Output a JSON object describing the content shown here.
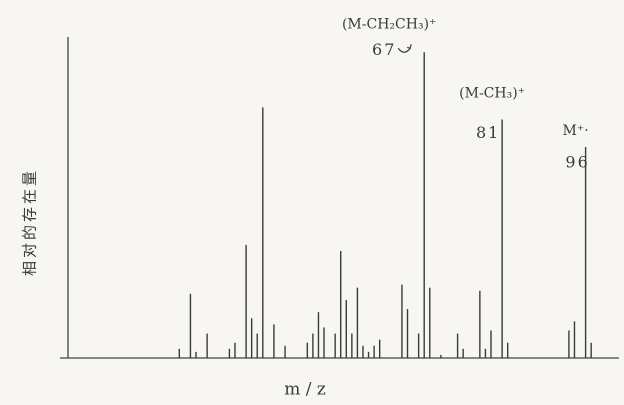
{
  "chart_data": {
    "type": "stick",
    "x_label": "m / z",
    "y_label": "相对的存在量",
    "x": [
      23,
      25,
      26,
      28,
      32,
      33,
      35,
      36,
      37,
      38,
      40,
      42,
      46,
      47,
      48,
      49,
      51,
      52,
      53,
      54,
      55,
      56,
      57,
      58,
      59,
      63,
      64,
      66,
      67,
      68,
      70,
      73,
      74,
      77,
      78,
      79,
      81,
      82,
      93,
      94,
      96,
      97
    ],
    "values": [
      3,
      21,
      2,
      8,
      3,
      5,
      37,
      13,
      8,
      82,
      11,
      4,
      5,
      8,
      15,
      10,
      8,
      35,
      19,
      8,
      23,
      4,
      2,
      4,
      6,
      24,
      16,
      8,
      100,
      23,
      1,
      8,
      3,
      22,
      3,
      9,
      78,
      5,
      9,
      12,
      69,
      5
    ],
    "color": "#3a3a3a",
    "xlim": [
      3,
      102
    ],
    "ylim": [
      0,
      105
    ],
    "annotations": [
      {
        "text": "(M-CH₂CH₃)⁺",
        "x": 67
      },
      {
        "text": "(M-CH₃)⁺",
        "x": 81
      },
      {
        "text": "M⁺·",
        "x": 96
      }
    ]
  }
}
